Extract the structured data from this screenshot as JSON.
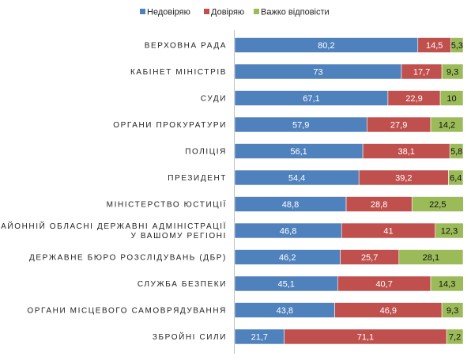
{
  "chart_data": {
    "type": "bar",
    "orientation": "horizontal",
    "stacked": true,
    "title": "",
    "xlabel": "",
    "ylabel": "",
    "xlim": [
      0,
      100
    ],
    "grid": false,
    "legend_position": "top",
    "categories": [
      [
        "ВЕРХОВНА РАДА"
      ],
      [
        "КАБІНЕТ МІНІСТРІВ"
      ],
      [
        "СУДИ"
      ],
      [
        "ОРГАНИ ПРОКУРАТУРИ"
      ],
      [
        "ПОЛІЦІЯ"
      ],
      [
        "ПРЕЗИДЕНТ"
      ],
      [
        "МІНІСТЕРСТВО ЮСТИЦІЇ"
      ],
      [
        "РАЙОННІЙ ОБЛАСНІ ДЕРЖАВНІ АДМІНІСТРАЦІЇ",
        "У ВАШОМУ РЕГІОНІ"
      ],
      [
        "ДЕРЖАВНЕ БЮРО РОЗСЛІДУВАНЬ (ДБР)"
      ],
      [
        "СЛУЖБА БЕЗПЕКИ"
      ],
      [
        "ОРГАНИ МІСЦЕВОГО САМОВРЯДУВАННЯ"
      ],
      [
        "ЗБРОЙНІ СИЛИ"
      ]
    ],
    "series": [
      {
        "name": "Недовіряю",
        "color": "#4f81bd",
        "label_color": "#ffffff",
        "values": [
          80.2,
          73,
          67.1,
          57.9,
          56.1,
          54.4,
          48.8,
          46.8,
          46.2,
          45.1,
          43.8,
          21.7
        ]
      },
      {
        "name": "Довіряю",
        "color": "#c0504d",
        "label_color": "#ffffff",
        "values": [
          14.5,
          17.7,
          22.9,
          27.9,
          38.1,
          39.2,
          28.8,
          41,
          25.7,
          40.7,
          46.9,
          71.1
        ]
      },
      {
        "name": "Важко відповісти",
        "color": "#9bbb59",
        "label_color": "#111111",
        "values": [
          5.3,
          9.3,
          10,
          14.2,
          5.8,
          6.4,
          22.5,
          12.3,
          28.1,
          14.3,
          9.3,
          7.2
        ]
      }
    ],
    "decimal_separator": ","
  }
}
